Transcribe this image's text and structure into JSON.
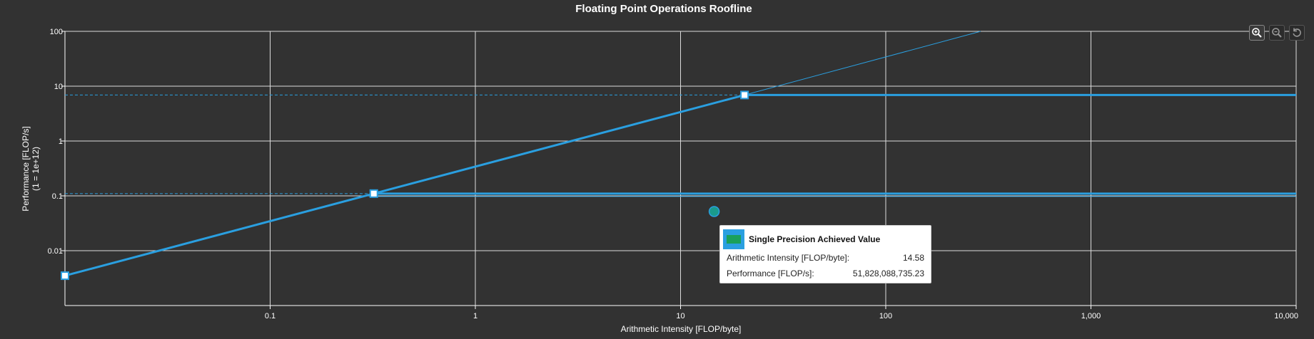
{
  "chart_data": {
    "type": "line",
    "title": "Floating Point Operations Roofline",
    "xlabel": "Arithmetic Intensity [FLOP/byte]",
    "ylabel": "Performance [FLOP/s]",
    "ylabel_unit": "(1 = 1e+12)",
    "x_scale": "log",
    "y_scale": "log",
    "xlim": [
      0.01,
      10000
    ],
    "ylim": [
      0.002,
      100
    ],
    "grid": true,
    "x_ticks": [
      {
        "value": 0.1,
        "label": "0.1"
      },
      {
        "value": 1,
        "label": "1"
      },
      {
        "value": 10,
        "label": "10"
      },
      {
        "value": 100,
        "label": "100"
      },
      {
        "value": 1000,
        "label": "1,000"
      },
      {
        "value": 10000,
        "label": "10,000"
      }
    ],
    "y_ticks": [
      {
        "value": 0.01,
        "label": "0.01"
      },
      {
        "value": 0.1,
        "label": "0.1"
      },
      {
        "value": 1,
        "label": "1"
      },
      {
        "value": 10,
        "label": "10"
      },
      {
        "value": 100,
        "label": "100"
      }
    ],
    "series": [
      {
        "kind": "bandwidth-roof",
        "points": [
          [
            0.01,
            0.0035
          ],
          [
            0.32,
            0.11
          ],
          [
            20.5,
            6.9
          ]
        ]
      },
      {
        "kind": "bandwidth-extension",
        "points": [
          [
            20.5,
            6.9
          ],
          [
            290,
            100
          ]
        ]
      },
      {
        "kind": "compute-roof-low",
        "y": 0.11,
        "x_from": 0.32,
        "x_to": 10000,
        "ref_from": 0.01
      },
      {
        "kind": "compute-roof-high",
        "y": 6.9,
        "x_from": 20.5,
        "x_to": 10000,
        "ref_from": 0.01
      }
    ],
    "knee_points": [
      [
        0.01,
        0.0035
      ],
      [
        0.32,
        0.11
      ],
      [
        20.5,
        6.9
      ]
    ],
    "achieved": {
      "x": 14.58,
      "y": 0.05182808873523,
      "color": "#1a9a8c"
    },
    "roof_color": "#2a9fe0"
  },
  "tooltip": {
    "title": "Single Precision Achieved Value",
    "rows": [
      {
        "label": "Arithmetic Intensity [FLOP/byte]:",
        "value": "14.58"
      },
      {
        "label": "Performance [FLOP/s]:",
        "value": "51,828,088,735.23"
      }
    ]
  },
  "toolbar": {
    "buttons": [
      {
        "name": "zoom-in",
        "icon": "zoom-in-icon"
      },
      {
        "name": "zoom-out",
        "icon": "zoom-out-icon"
      },
      {
        "name": "reset",
        "icon": "reset-icon"
      }
    ]
  }
}
